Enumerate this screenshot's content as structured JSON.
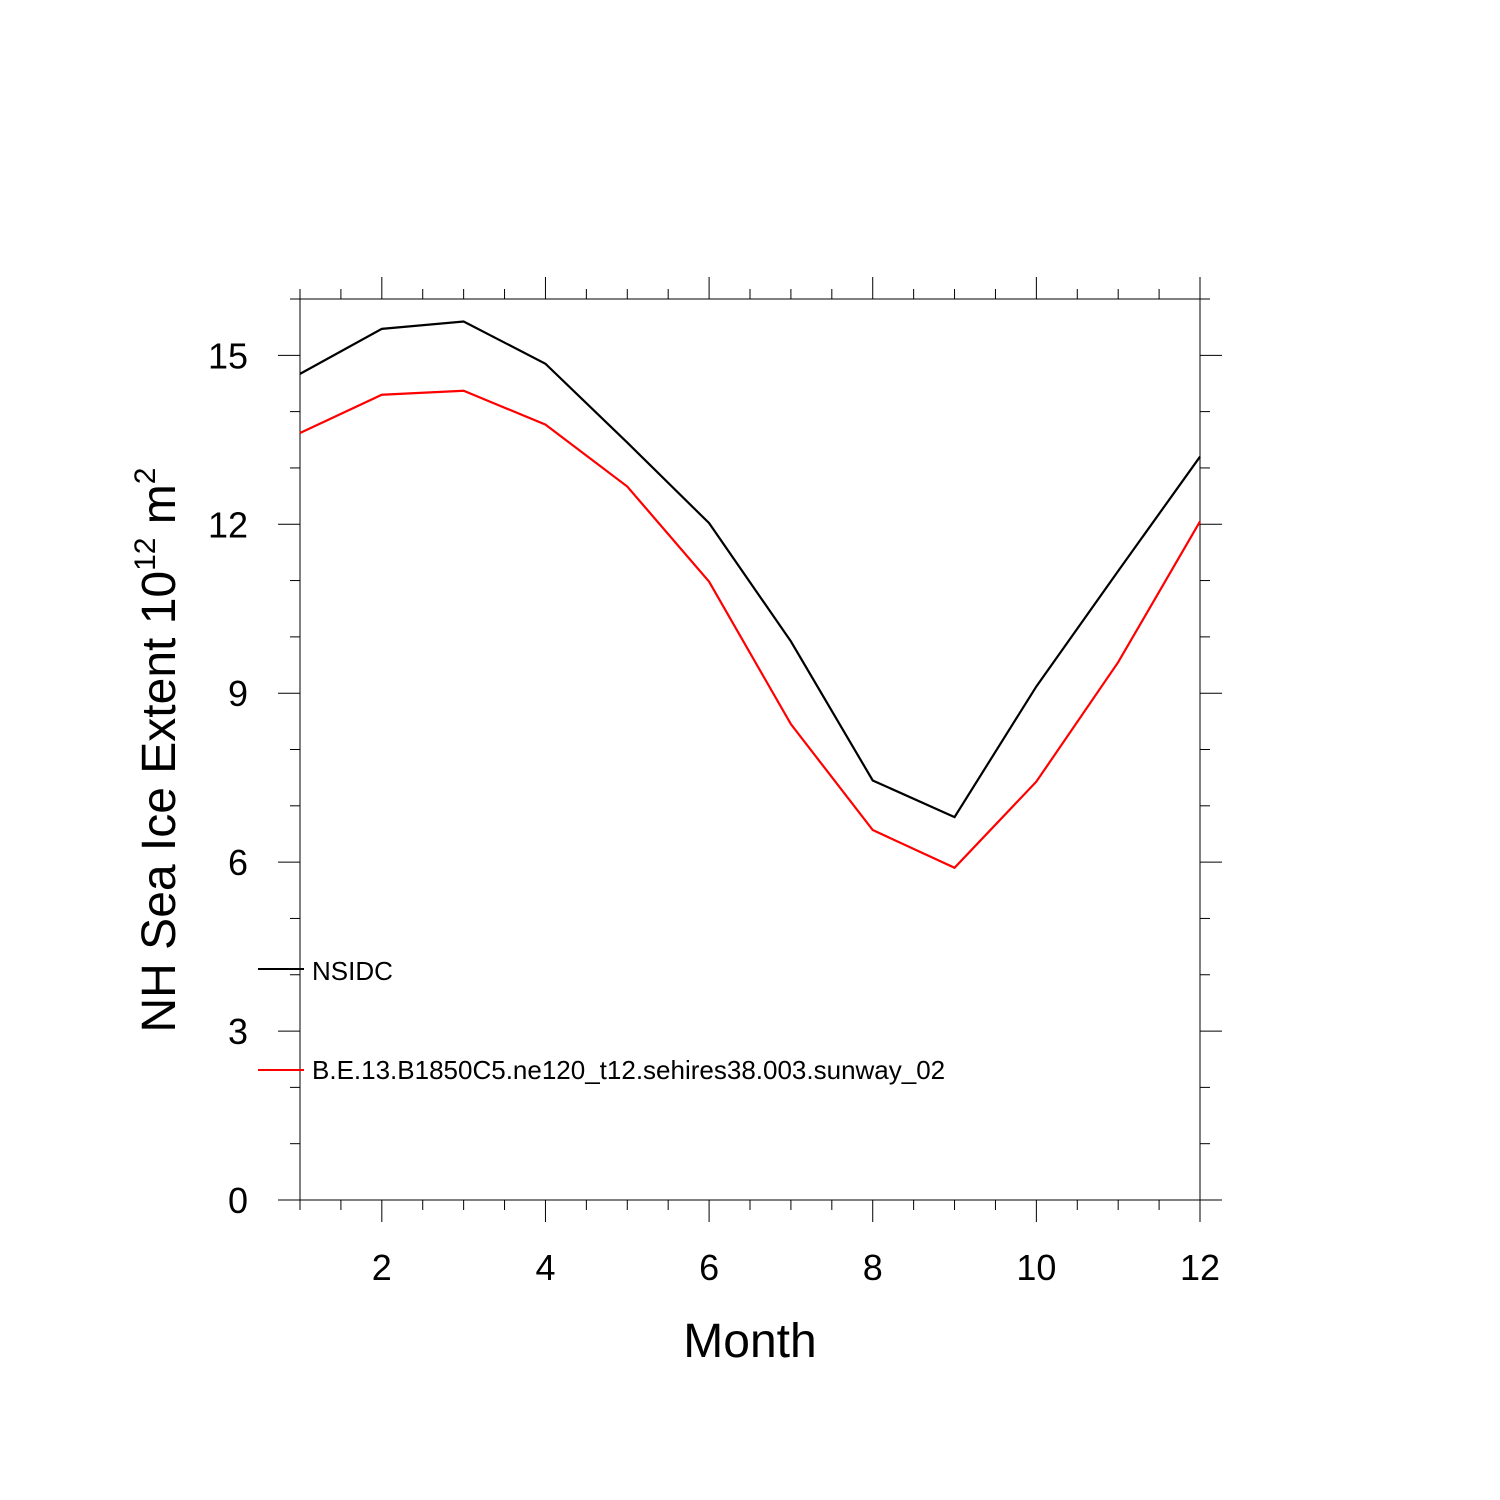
{
  "chart_data": {
    "type": "line",
    "xlabel": "Month",
    "ylabel": {
      "text": "NH Sea Ice Extent 10",
      "exponent": "12",
      "unit": " m",
      "unit_exponent": "2"
    },
    "xlim": [
      1,
      12
    ],
    "ylim": [
      0,
      16
    ],
    "x_ticks": [
      2,
      4,
      6,
      8,
      10,
      12
    ],
    "y_ticks": [
      0,
      3,
      6,
      9,
      12,
      15
    ],
    "grid": false,
    "legend_placement": "lower-left",
    "x": [
      1,
      2,
      3,
      4,
      5,
      6,
      7,
      8,
      9,
      10,
      11,
      12
    ],
    "series": [
      {
        "name": "NSIDC",
        "color": "#000000",
        "values": [
          14.67,
          15.47,
          15.6,
          14.85,
          13.45,
          12.02,
          9.92,
          7.45,
          6.8,
          9.12,
          11.17,
          13.2
        ]
      },
      {
        "name": "B.E.13.B1850C5.ne120_t12.sehires38.003.sunway_02",
        "color": "#ff0000",
        "values": [
          13.62,
          14.3,
          14.37,
          13.77,
          12.67,
          10.98,
          8.45,
          6.57,
          5.9,
          7.43,
          9.55,
          12.05
        ]
      }
    ]
  }
}
